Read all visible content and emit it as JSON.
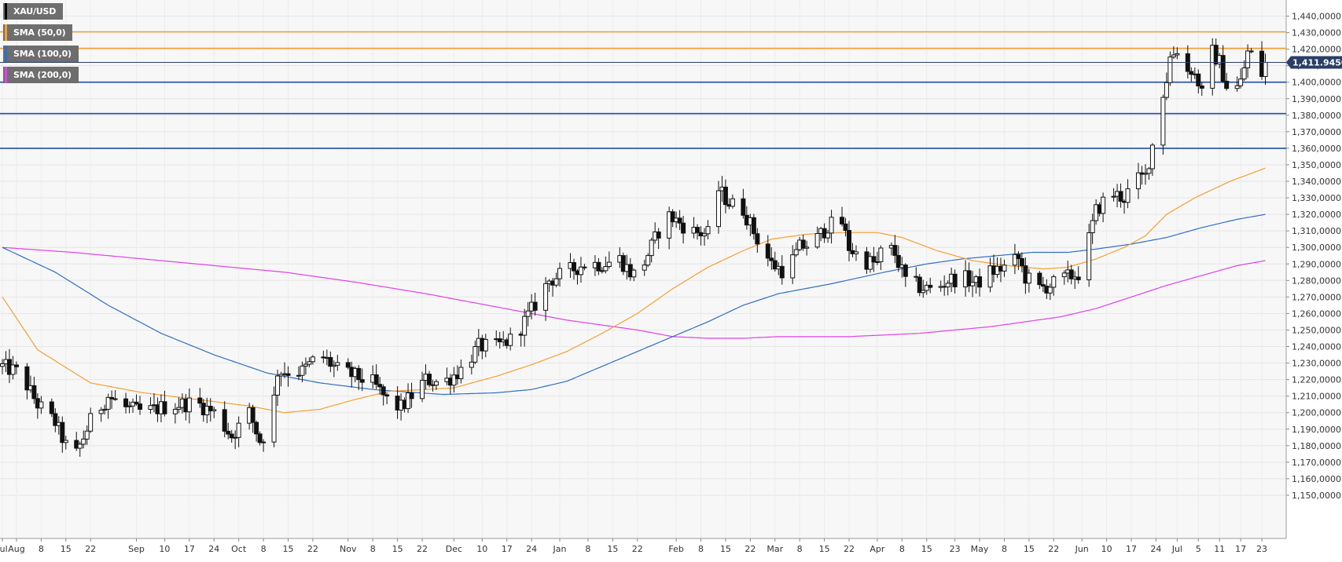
{
  "chart_data": {
    "type": "candlestick",
    "symbol": "XAU/USD",
    "legend": [
      {
        "name": "XAU/USD",
        "color": "#000000"
      },
      {
        "name": "SMA (50,0)",
        "color": "#f5a030"
      },
      {
        "name": "SMA (100,0)",
        "color": "#2f6fc4"
      },
      {
        "name": "SMA (200,0)",
        "color": "#e040e8"
      }
    ],
    "ylim": [
      1150,
      1440
    ],
    "yticks": [
      1440,
      1430,
      1420,
      1410,
      1400,
      1390,
      1380,
      1370,
      1360,
      1350,
      1340,
      1330,
      1320,
      1310,
      1300,
      1290,
      1280,
      1270,
      1260,
      1250,
      1240,
      1230,
      1220,
      1210,
      1200,
      1190,
      1180,
      1170,
      1160,
      1150
    ],
    "ytick_labels": [
      "1,440,0000",
      "1,430,0000",
      "1,420,0000",
      "1,410,0000",
      "1,400,0000",
      "1,390,0000",
      "1,380,0000",
      "1,370,0000",
      "1,360,0000",
      "1,350,0000",
      "1,340,0000",
      "1,330,0000",
      "1,320,0000",
      "1,310,0000",
      "1,300,0000",
      "1,290,0000",
      "1,280,0000",
      "1,270,0000",
      "1,260,0000",
      "1,250,0000",
      "1,240,0000",
      "1,230,0000",
      "1,220,0000",
      "1,210,0000",
      "1,200,0000",
      "1,190,0000",
      "1,180,0000",
      "1,170,0000",
      "1,160,0000",
      "1,150,0000"
    ],
    "last_price": 1411.945,
    "last_price_label": "1,411.94500",
    "horizontal_levels": [
      {
        "value": 1430.5,
        "color": "#f5a030"
      },
      {
        "value": 1420.5,
        "color": "#f5a030"
      },
      {
        "value": 1400,
        "color": "#1f4ea8"
      },
      {
        "value": 1381,
        "color": "#1f4ea8"
      },
      {
        "value": 1360,
        "color": "#1f4ea8"
      }
    ],
    "x_tick_labels": [
      "Jul",
      "Aug",
      "8",
      "15",
      "22",
      "Sep",
      "10",
      "17",
      "24",
      "Oct",
      "8",
      "15",
      "22",
      "Nov",
      "8",
      "15",
      "22",
      "Dec",
      "10",
      "17",
      "24",
      "Jan",
      "8",
      "15",
      "22",
      "Feb",
      "8",
      "15",
      "22",
      "Mar",
      "8",
      "15",
      "22",
      "Apr",
      "8",
      "15",
      "23",
      "May",
      "8",
      "15",
      "22",
      "Jun",
      "10",
      "17",
      "24",
      "Jul",
      "5",
      "11",
      "17",
      "23"
    ],
    "x_tick_days": [
      0,
      4,
      11,
      18,
      25,
      38,
      46,
      53,
      60,
      67,
      74,
      81,
      88,
      98,
      105,
      112,
      119,
      128,
      136,
      143,
      150,
      158,
      166,
      173,
      180,
      191,
      198,
      205,
      212,
      219,
      226,
      233,
      240,
      248,
      255,
      262,
      270,
      277,
      284,
      291,
      298,
      306,
      313,
      320,
      327,
      333,
      339,
      345,
      351,
      357
    ],
    "x_day_range": [
      0,
      361
    ],
    "candle_anchors": [
      [
        0,
        1228
      ],
      [
        5,
        1224
      ],
      [
        10,
        1205
      ],
      [
        15,
        1194
      ],
      [
        18,
        1180
      ],
      [
        20,
        1170
      ],
      [
        25,
        1195
      ],
      [
        30,
        1210
      ],
      [
        35,
        1203
      ],
      [
        40,
        1200
      ],
      [
        45,
        1203
      ],
      [
        50,
        1205
      ],
      [
        55,
        1206
      ],
      [
        60,
        1200
      ],
      [
        65,
        1186
      ],
      [
        70,
        1200
      ],
      [
        73,
        1183
      ],
      [
        76,
        1192
      ],
      [
        78,
        1225
      ],
      [
        85,
        1225
      ],
      [
        90,
        1235
      ],
      [
        95,
        1226
      ],
      [
        100,
        1222
      ],
      [
        105,
        1218
      ],
      [
        110,
        1205
      ],
      [
        113,
        1203
      ],
      [
        120,
        1220
      ],
      [
        125,
        1218
      ],
      [
        130,
        1226
      ],
      [
        135,
        1240
      ],
      [
        140,
        1240
      ],
      [
        145,
        1245
      ],
      [
        150,
        1262
      ],
      [
        155,
        1280
      ],
      [
        160,
        1285
      ],
      [
        165,
        1290
      ],
      [
        170,
        1290
      ],
      [
        175,
        1293
      ],
      [
        178,
        1285
      ],
      [
        180,
        1282
      ],
      [
        185,
        1305
      ],
      [
        188,
        1320
      ],
      [
        192,
        1315
      ],
      [
        195,
        1310
      ],
      [
        200,
        1308
      ],
      [
        203,
        1335
      ],
      [
        206,
        1327
      ],
      [
        210,
        1323
      ],
      [
        214,
        1305
      ],
      [
        218,
        1290
      ],
      [
        222,
        1285
      ],
      [
        226,
        1300
      ],
      [
        230,
        1303
      ],
      [
        234,
        1313
      ],
      [
        238,
        1315
      ],
      [
        240,
        1300
      ],
      [
        244,
        1292
      ],
      [
        248,
        1290
      ],
      [
        250,
        1303
      ],
      [
        253,
        1296
      ],
      [
        256,
        1280
      ],
      [
        260,
        1276
      ],
      [
        264,
        1274
      ],
      [
        268,
        1280
      ],
      [
        272,
        1282
      ],
      [
        276,
        1278
      ],
      [
        280,
        1285
      ],
      [
        284,
        1288
      ],
      [
        288,
        1293
      ],
      [
        290,
        1282
      ],
      [
        294,
        1275
      ],
      [
        298,
        1278
      ],
      [
        302,
        1282
      ],
      [
        306,
        1285
      ],
      [
        308,
        1305
      ],
      [
        310,
        1322
      ],
      [
        314,
        1333
      ],
      [
        318,
        1330
      ],
      [
        321,
        1340
      ],
      [
        324,
        1343
      ],
      [
        326,
        1362
      ],
      [
        328,
        1385
      ],
      [
        330,
        1402
      ],
      [
        331,
        1415
      ],
      [
        333,
        1420
      ],
      [
        335,
        1405
      ],
      [
        337,
        1408
      ],
      [
        339,
        1400
      ],
      [
        341,
        1385
      ],
      [
        343,
        1418
      ],
      [
        345,
        1412
      ],
      [
        347,
        1398
      ],
      [
        349,
        1394
      ],
      [
        351,
        1400
      ],
      [
        353,
        1418
      ],
      [
        355,
        1415
      ],
      [
        357,
        1405
      ],
      [
        358,
        1411.945
      ]
    ],
    "sma50": [
      [
        0,
        1270
      ],
      [
        10,
        1238
      ],
      [
        25,
        1218
      ],
      [
        40,
        1212
      ],
      [
        55,
        1208
      ],
      [
        70,
        1204
      ],
      [
        80,
        1200
      ],
      [
        90,
        1202
      ],
      [
        100,
        1208
      ],
      [
        110,
        1213
      ],
      [
        120,
        1214
      ],
      [
        128,
        1215
      ],
      [
        140,
        1222
      ],
      [
        150,
        1229
      ],
      [
        160,
        1237
      ],
      [
        170,
        1248
      ],
      [
        180,
        1260
      ],
      [
        190,
        1275
      ],
      [
        200,
        1288
      ],
      [
        210,
        1298
      ],
      [
        218,
        1305
      ],
      [
        228,
        1308
      ],
      [
        238,
        1309
      ],
      [
        248,
        1309
      ],
      [
        255,
        1306
      ],
      [
        265,
        1298
      ],
      [
        275,
        1292
      ],
      [
        285,
        1289
      ],
      [
        295,
        1287
      ],
      [
        302,
        1288
      ],
      [
        310,
        1293
      ],
      [
        318,
        1300
      ],
      [
        324,
        1307
      ],
      [
        330,
        1320
      ],
      [
        338,
        1330
      ],
      [
        348,
        1340
      ],
      [
        358,
        1348
      ]
    ],
    "sma100": [
      [
        0,
        1300
      ],
      [
        15,
        1285
      ],
      [
        30,
        1265
      ],
      [
        45,
        1248
      ],
      [
        60,
        1235
      ],
      [
        75,
        1224
      ],
      [
        90,
        1218
      ],
      [
        105,
        1214
      ],
      [
        118,
        1212
      ],
      [
        125,
        1211
      ],
      [
        140,
        1212
      ],
      [
        150,
        1214
      ],
      [
        160,
        1219
      ],
      [
        170,
        1228
      ],
      [
        180,
        1237
      ],
      [
        190,
        1246
      ],
      [
        200,
        1255
      ],
      [
        210,
        1265
      ],
      [
        220,
        1272
      ],
      [
        235,
        1278
      ],
      [
        250,
        1285
      ],
      [
        262,
        1290
      ],
      [
        272,
        1293
      ],
      [
        282,
        1295
      ],
      [
        292,
        1297
      ],
      [
        302,
        1297
      ],
      [
        310,
        1299
      ],
      [
        320,
        1302
      ],
      [
        330,
        1306
      ],
      [
        340,
        1312
      ],
      [
        350,
        1317
      ],
      [
        358,
        1320
      ]
    ],
    "sma200": [
      [
        0,
        1300
      ],
      [
        20,
        1297
      ],
      [
        40,
        1293
      ],
      [
        60,
        1289
      ],
      [
        80,
        1285
      ],
      [
        100,
        1279
      ],
      [
        120,
        1272
      ],
      [
        140,
        1264
      ],
      [
        160,
        1256
      ],
      [
        180,
        1250
      ],
      [
        190,
        1246
      ],
      [
        200,
        1245
      ],
      [
        210,
        1245
      ],
      [
        220,
        1246
      ],
      [
        230,
        1246
      ],
      [
        240,
        1246
      ],
      [
        250,
        1247
      ],
      [
        260,
        1248
      ],
      [
        270,
        1250
      ],
      [
        280,
        1252
      ],
      [
        290,
        1255
      ],
      [
        300,
        1258
      ],
      [
        310,
        1263
      ],
      [
        320,
        1270
      ],
      [
        330,
        1277
      ],
      [
        340,
        1283
      ],
      [
        350,
        1289
      ],
      [
        358,
        1292
      ]
    ]
  }
}
